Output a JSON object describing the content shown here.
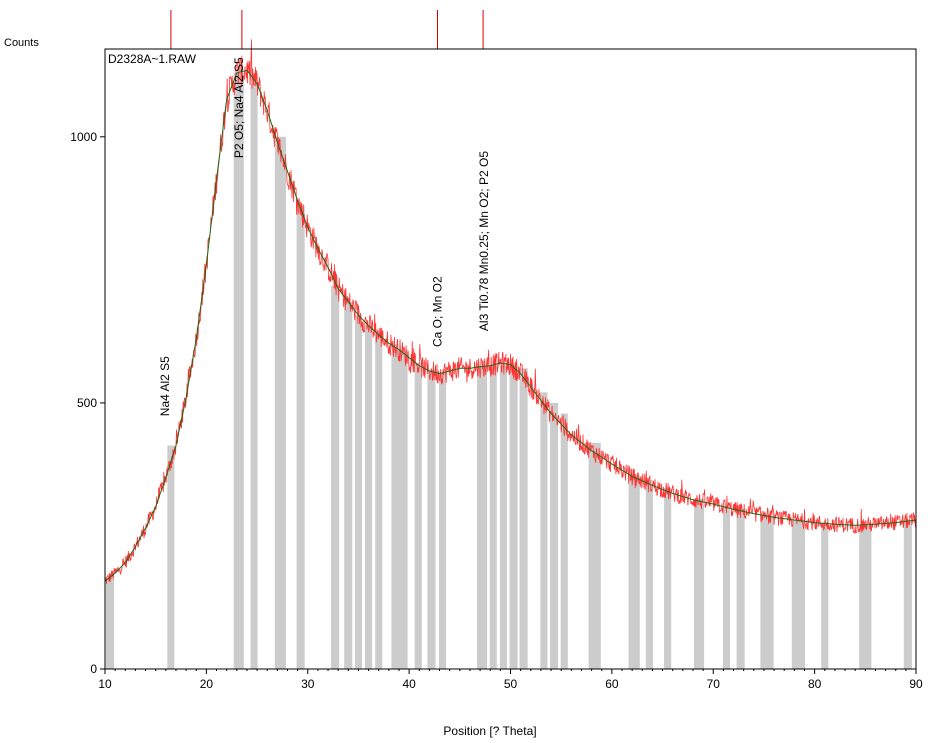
{
  "chart_data": {
    "type": "line",
    "title": "D2328A~1.RAW",
    "ylabel": "Counts",
    "xlabel": "Position [? Theta]",
    "xlim": [
      10,
      90
    ],
    "ylim": [
      0,
      1165
    ],
    "xticks": [
      10,
      20,
      30,
      40,
      50,
      60,
      70,
      80,
      90
    ],
    "yticks": [
      0,
      500,
      1000
    ],
    "grid": false,
    "colors": {
      "observed": "#ff3333",
      "fit": "#1a6b1a",
      "difference": "#cccccc",
      "peak_marker": "#dd0000"
    },
    "profile": {
      "x": [
        10,
        11,
        12,
        13,
        14,
        15,
        16,
        17,
        18,
        19,
        20,
        21,
        22,
        23,
        24,
        25,
        26,
        27,
        28,
        29,
        30,
        31,
        32,
        33,
        34,
        35,
        36,
        37,
        38,
        39,
        40,
        41,
        42,
        43,
        44,
        45,
        46,
        47,
        48,
        49,
        50,
        51,
        52,
        53,
        54,
        55,
        56,
        57,
        58,
        59,
        60,
        62,
        64,
        66,
        68,
        70,
        72,
        74,
        76,
        78,
        80,
        82,
        84,
        86,
        88,
        90
      ],
      "y": [
        165,
        180,
        200,
        230,
        265,
        305,
        360,
        420,
        510,
        620,
        760,
        920,
        1070,
        1120,
        1125,
        1100,
        1050,
        990,
        935,
        880,
        830,
        790,
        755,
        715,
        690,
        665,
        645,
        628,
        612,
        600,
        585,
        570,
        560,
        555,
        560,
        565,
        565,
        568,
        570,
        575,
        572,
        555,
        530,
        505,
        480,
        460,
        440,
        425,
        410,
        398,
        385,
        362,
        345,
        330,
        318,
        310,
        300,
        292,
        285,
        280,
        275,
        272,
        270,
        272,
        275,
        280
      ]
    },
    "difference_bars": {
      "x": [
        10.5,
        16.5,
        23.2,
        24.7,
        27.3,
        29.3,
        32.7,
        34.0,
        35.0,
        36.0,
        37.0,
        38.6,
        39.4,
        40.9,
        42.2,
        43.3,
        47.2,
        48.3,
        49.3,
        50.3,
        51.3,
        53.3,
        54.3,
        55.3,
        58.3,
        62.2,
        63.7,
        65.5,
        68.6,
        71.3,
        72.7,
        75.3,
        78.4,
        81.0,
        85.0,
        89.2
      ],
      "y": [
        170,
        420,
        1120,
        1100,
        1000,
        870,
        720,
        690,
        665,
        645,
        630,
        610,
        600,
        575,
        562,
        558,
        570,
        570,
        570,
        575,
        565,
        520,
        500,
        480,
        425,
        365,
        355,
        340,
        320,
        305,
        300,
        288,
        280,
        275,
        270,
        280
      ],
      "w": [
        0.8,
        0.7,
        1.0,
        0.7,
        1.1,
        0.8,
        0.8,
        0.8,
        0.7,
        0.7,
        0.7,
        0.7,
        0.9,
        0.7,
        0.8,
        0.7,
        1.0,
        0.7,
        0.7,
        0.8,
        0.8,
        0.7,
        0.8,
        0.7,
        1.2,
        1.1,
        0.7,
        0.7,
        1.0,
        0.7,
        0.8,
        1.3,
        1.3,
        0.7,
        1.2,
        0.8
      ]
    },
    "peak_markers": [
      16.5,
      23.5,
      42.8,
      47.3
    ],
    "annotations": [
      {
        "text": "Na4 Al2 S5",
        "x": 16.3,
        "y": 475
      },
      {
        "text": "P2 O5; Na4 Al2 S5",
        "x": 23.6,
        "y": 960
      },
      {
        "text": "Ca O; Mn O2",
        "x": 43.2,
        "y": 605
      },
      {
        "text": "Al3 Ti0.78 Mn0.25; Mn O2; P2 O5",
        "x": 47.8,
        "y": 635
      }
    ]
  }
}
